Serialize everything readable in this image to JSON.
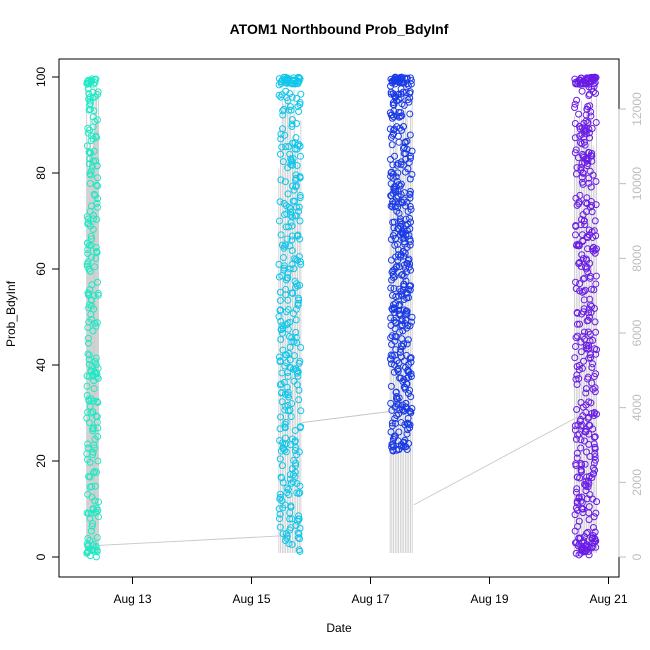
{
  "chart_data": {
    "type": "scatter",
    "title": "ATOM1 Northbound Prob_BdyInf",
    "xlabel": "Date",
    "ylabel": "Prob_BdyInf",
    "x_axis": {
      "type": "date",
      "range": [
        "2024-08-12",
        "2024-08-21"
      ],
      "ticks": [
        {
          "value": "Aug 13",
          "day": 13
        },
        {
          "value": "Aug 15",
          "day": 15
        },
        {
          "value": "Aug 17",
          "day": 17
        },
        {
          "value": "Aug 19",
          "day": 19
        },
        {
          "value": "Aug 21",
          "day": 21
        }
      ]
    },
    "y_axis": {
      "range": [
        0,
        100
      ],
      "ticks": [
        0,
        20,
        40,
        60,
        80,
        100
      ]
    },
    "y2_axis": {
      "range": [
        0,
        12500
      ],
      "ticks": [
        0,
        2000,
        4000,
        6000,
        8000,
        10000,
        12000
      ],
      "color": "#bdbdbd"
    },
    "grid": false,
    "clusters": [
      {
        "day_start": 12.23,
        "day_end": 12.43,
        "color": "#1de9c4",
        "count": 220,
        "y_range": [
          0,
          100
        ]
      },
      {
        "day_start": 15.46,
        "day_end": 15.83,
        "color": "#11c6ea",
        "count": 340,
        "y_range": [
          1,
          100
        ]
      },
      {
        "day_start": 17.33,
        "day_end": 17.7,
        "color": "#1a3ae6",
        "count": 420,
        "y_range": [
          22,
          100
        ]
      },
      {
        "day_start": 20.43,
        "day_end": 20.8,
        "color": "#6a1de6",
        "count": 420,
        "y_range": [
          0,
          100
        ]
      }
    ],
    "series_line": {
      "color": "#c8c8c8",
      "points": [
        {
          "x": 12.3,
          "y2": 300
        },
        {
          "x": 15.55,
          "y2": 570
        },
        {
          "x": 15.85,
          "y2": 3600
        },
        {
          "x": 17.33,
          "y2": 3900
        },
        {
          "x": 17.73,
          "y2": 1400
        },
        {
          "x": 20.48,
          "y2": 3750
        }
      ]
    }
  }
}
